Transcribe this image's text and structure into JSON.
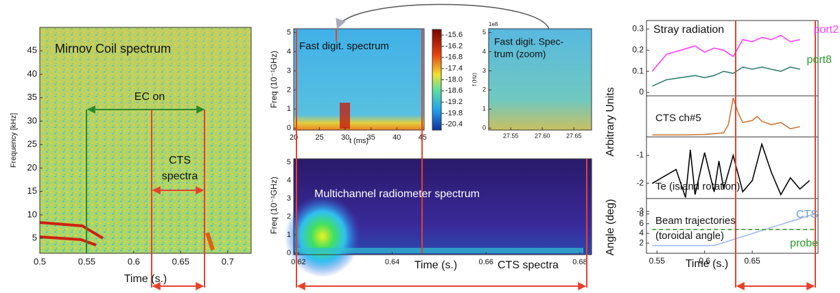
{
  "chart_data": [
    {
      "type": "spectrogram",
      "title": "Mirnov Coil spectrum",
      "x_label": "Time (s.)",
      "y_label": "Frequency [kHz]",
      "annotations": [
        "EC on",
        "CTS",
        "spectra"
      ],
      "xlim": [
        0.5,
        0.725
      ],
      "xticks": [
        0.5,
        0.55,
        0.6,
        0.65,
        0.7
      ],
      "ylim": [
        1.8,
        50
      ],
      "yticks": [
        5,
        10,
        15,
        20,
        25,
        30,
        35,
        40,
        45
      ]
    },
    {
      "type": "spectrogram",
      "title": "Fast digit. spectrum",
      "x_label": "t (ms)",
      "y_label": "Freq (10⁻¹GHz)",
      "xlim": [
        20,
        45.3
      ],
      "xticks": [
        20,
        25,
        30,
        35,
        40,
        45
      ],
      "ylim": [
        -0.1,
        5.2
      ],
      "yticks": [
        0,
        1,
        2,
        3,
        4,
        5
      ],
      "colorbar": {
        "lim": [
          -15.3,
          -20.7
        ],
        "ticks": [
          -15.6,
          -16.2,
          -16.8,
          -17.4,
          {
            "value": -18,
            "label": "-18.0"
          },
          -18.6,
          -19.2,
          -19.8,
          -20.4
        ]
      }
    },
    {
      "type": "spectrogram",
      "title": [
        "Fast digit. Spec-",
        "trum (zoom)"
      ],
      "y_label": "f (Hz)",
      "scale_label": "1e8",
      "xlim": [
        27.515,
        27.678
      ],
      "xticks": [
        27.55,
        {
          "value": 27.6,
          "label": "27.60"
        },
        27.65
      ],
      "ylim": [
        -0.1,
        5.2
      ],
      "yticks": [
        0,
        1,
        2,
        3,
        4,
        5
      ]
    },
    {
      "type": "spectrogram",
      "title": "Multichannel radiometer spectrum",
      "x_label": "Time (s.)",
      "y_label": "Freq (10⁻¹GHz)",
      "annotations": [
        "CTS spectra"
      ],
      "xlim": [
        0.619,
        0.6825
      ],
      "xticks": [
        0.62,
        0.64,
        0.66,
        0.68
      ],
      "ylim": [
        -0.1,
        5.2
      ],
      "yticks": [
        0,
        1,
        2,
        3,
        4,
        5
      ]
    },
    {
      "type": "line",
      "title": "Stray radiation",
      "x": [
        0.545,
        0.56,
        0.575,
        0.59,
        0.6,
        0.61,
        0.62,
        0.63,
        0.64,
        0.65,
        0.66,
        0.67,
        0.68,
        0.69,
        0.7
      ],
      "series": [
        {
          "name": "port2",
          "color": "#ff3cff",
          "values": [
            0.1,
            0.18,
            0.2,
            0.22,
            0.19,
            0.21,
            0.2,
            0.17,
            0.25,
            0.24,
            0.26,
            0.25,
            0.27,
            0.24,
            0.25
          ]
        },
        {
          "name": "port8",
          "color": "#2e7d6e",
          "values": [
            0.03,
            0.06,
            0.07,
            0.08,
            0.07,
            0.08,
            0.1,
            0.09,
            0.12,
            0.11,
            0.12,
            0.11,
            0.1,
            0.12,
            0.11
          ]
        }
      ],
      "xlim": [
        0.539,
        0.719
      ],
      "ylim": [
        -0.016,
        0.34
      ],
      "yticks": [
        0,
        0.1,
        0.2,
        0.3
      ]
    },
    {
      "type": "line",
      "title": "CTS ch#5",
      "y_label": "Arbitrary Units",
      "x": [
        0.545,
        0.58,
        0.6,
        0.62,
        0.625,
        0.63,
        0.635,
        0.64,
        0.65,
        0.655,
        0.66,
        0.67,
        0.68,
        0.69,
        0.7
      ],
      "series": [
        {
          "color": "#c87533",
          "values": [
            0.05,
            0.05,
            0.06,
            0.1,
            0.3,
            0.95,
            0.6,
            0.35,
            0.4,
            0.5,
            0.38,
            0.3,
            0.35,
            0.2,
            0.25
          ]
        }
      ],
      "xlim": [
        0.539,
        0.719
      ],
      "ylim": [
        0,
        1
      ]
    },
    {
      "type": "line",
      "title": "Te (island rotation)",
      "x": [
        0.545,
        0.57,
        0.58,
        0.585,
        0.59,
        0.6,
        0.61,
        0.615,
        0.62,
        0.63,
        0.64,
        0.65,
        0.66,
        0.67,
        0.68,
        0.69,
        0.7,
        0.71
      ],
      "series": [
        {
          "color": "#000000",
          "values": [
            -2,
            -1.5,
            -2.5,
            -0.8,
            -2.4,
            -0.9,
            -2.3,
            -1.2,
            -2.2,
            -1,
            -2.3,
            -1.9,
            -0.6,
            -1.6,
            -2.4,
            -1.8,
            -2.2,
            -1.9
          ]
        }
      ],
      "xlim": [
        0.539,
        0.719
      ],
      "ylim": [
        -2.54,
        -0.34
      ],
      "yticks": [
        -1,
        -2,
        -3
      ]
    },
    {
      "type": "line",
      "title": [
        "Beam trajectories",
        "(toroidal angle)"
      ],
      "x_label": "Time (s.)",
      "y_label": "Angle (deg)",
      "x": [
        0.545,
        0.61,
        0.715
      ],
      "series": [
        {
          "name": "CTS",
          "color": "#9fb8f0",
          "values": [
            1.5,
            1.5,
            8
          ]
        },
        {
          "name": "probe",
          "color": "#2a9a2a",
          "style": "dashed",
          "values": [
            4.8,
            4.8,
            4.8
          ]
        }
      ],
      "xlim": [
        0.539,
        0.719
      ],
      "xticks": [
        0.55,
        0.6,
        0.65
      ],
      "ylim": [
        -0.1,
        11.2
      ],
      "yticks": [
        2,
        4,
        6,
        8
      ]
    }
  ]
}
